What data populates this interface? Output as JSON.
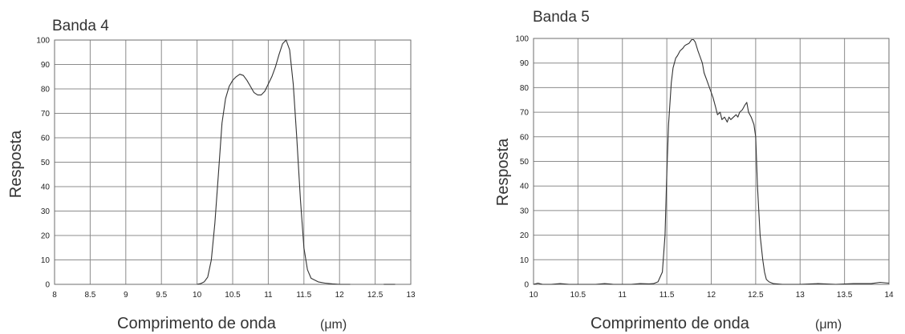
{
  "chart_data": [
    {
      "type": "line",
      "title": "Banda 4",
      "xlabel": "Comprimento de onda",
      "xunit": "(μm)",
      "ylabel": "Resposta",
      "xlim": [
        8,
        13
      ],
      "ylim": [
        0,
        100
      ],
      "xticks": [
        "8",
        "8.5",
        "9",
        "9.5",
        "10",
        "10.5",
        "11",
        "11.5",
        "12",
        "12.5",
        "13"
      ],
      "yticks": [
        "0",
        "10",
        "20",
        "30",
        "40",
        "50",
        "60",
        "70",
        "80",
        "90",
        "100"
      ],
      "grid": true,
      "series": [
        {
          "x": [
            10.0,
            10.05,
            10.1,
            10.15,
            10.2,
            10.25,
            10.3,
            10.35,
            10.4,
            10.45,
            10.5,
            10.55,
            10.6,
            10.65,
            10.7,
            10.75,
            10.8,
            10.85,
            10.9,
            10.95,
            11.0,
            11.05,
            11.1,
            11.15,
            11.2,
            11.25,
            11.3,
            11.35,
            11.4,
            11.45,
            11.5,
            11.55,
            11.6,
            11.7,
            11.8,
            11.9,
            12.0,
            12.1,
            12.15
          ],
          "y": [
            0,
            0.3,
            1,
            3,
            10,
            25,
            45,
            66,
            76,
            81,
            83.5,
            85,
            86,
            85.5,
            83.5,
            81,
            78.5,
            77.5,
            77.5,
            79,
            82,
            85,
            89,
            94,
            98.5,
            100,
            96,
            82,
            60,
            35,
            15,
            6,
            2.5,
            1,
            0.5,
            0.2,
            0,
            0,
            0
          ]
        },
        {
          "x": [
            12.62,
            12.66,
            12.7,
            12.74,
            12.78
          ],
          "y": [
            0,
            0,
            0,
            0,
            0
          ]
        }
      ]
    },
    {
      "type": "line",
      "title": "Banda 5",
      "xlabel": "Comprimento de onda",
      "xunit": "(μm)",
      "ylabel": "Resposta",
      "xlim": [
        10,
        14
      ],
      "ylim": [
        0,
        100
      ],
      "xticks": [
        "10",
        "10.5",
        "11",
        "11.5",
        "12",
        "12.5",
        "13",
        "13.5",
        "14"
      ],
      "yticks": [
        "0",
        "10",
        "20",
        "30",
        "40",
        "50",
        "60",
        "70",
        "80",
        "90",
        "100"
      ],
      "grid": true,
      "series": [
        {
          "x": [
            10.0,
            10.05,
            10.1,
            10.2,
            10.3,
            10.4,
            10.5,
            10.6,
            10.7,
            10.8,
            10.9,
            11.0,
            11.1,
            11.2,
            11.3,
            11.35,
            11.4,
            11.45,
            11.48,
            11.5,
            11.52,
            11.55,
            11.57,
            11.6,
            11.62,
            11.65,
            11.68,
            11.7,
            11.72,
            11.75,
            11.78,
            11.8,
            11.82,
            11.85,
            11.87,
            11.9,
            11.92,
            11.95,
            11.98,
            12.0,
            12.02,
            12.05,
            12.07,
            12.1,
            12.12,
            12.15,
            12.18,
            12.2,
            12.22,
            12.25,
            12.28,
            12.3,
            12.32,
            12.35,
            12.38,
            12.4,
            12.42,
            12.45,
            12.48,
            12.5,
            12.52,
            12.55,
            12.58,
            12.6,
            12.62,
            12.65,
            12.7,
            12.8,
            12.9,
            13.0,
            13.2,
            13.4,
            13.6,
            13.8,
            13.9,
            14.0
          ],
          "y": [
            0,
            0.5,
            0,
            0,
            0.3,
            0,
            0,
            0,
            0,
            0.3,
            0,
            0,
            0,
            0.3,
            0.2,
            0.3,
            1,
            5,
            20,
            45,
            65,
            82,
            88,
            92,
            93,
            95,
            96,
            97,
            97.5,
            98,
            99.5,
            99.5,
            98.5,
            95,
            93,
            90,
            86,
            83,
            80,
            78,
            76,
            72,
            69,
            70,
            67,
            68,
            66,
            68,
            67,
            68,
            69,
            68,
            70,
            71,
            73,
            74,
            70,
            68,
            65,
            60,
            40,
            20,
            10,
            5,
            2,
            1,
            0.3,
            0,
            0,
            0,
            0.3,
            0,
            0.3,
            0.3,
            0.8,
            0.5
          ]
        }
      ]
    }
  ]
}
